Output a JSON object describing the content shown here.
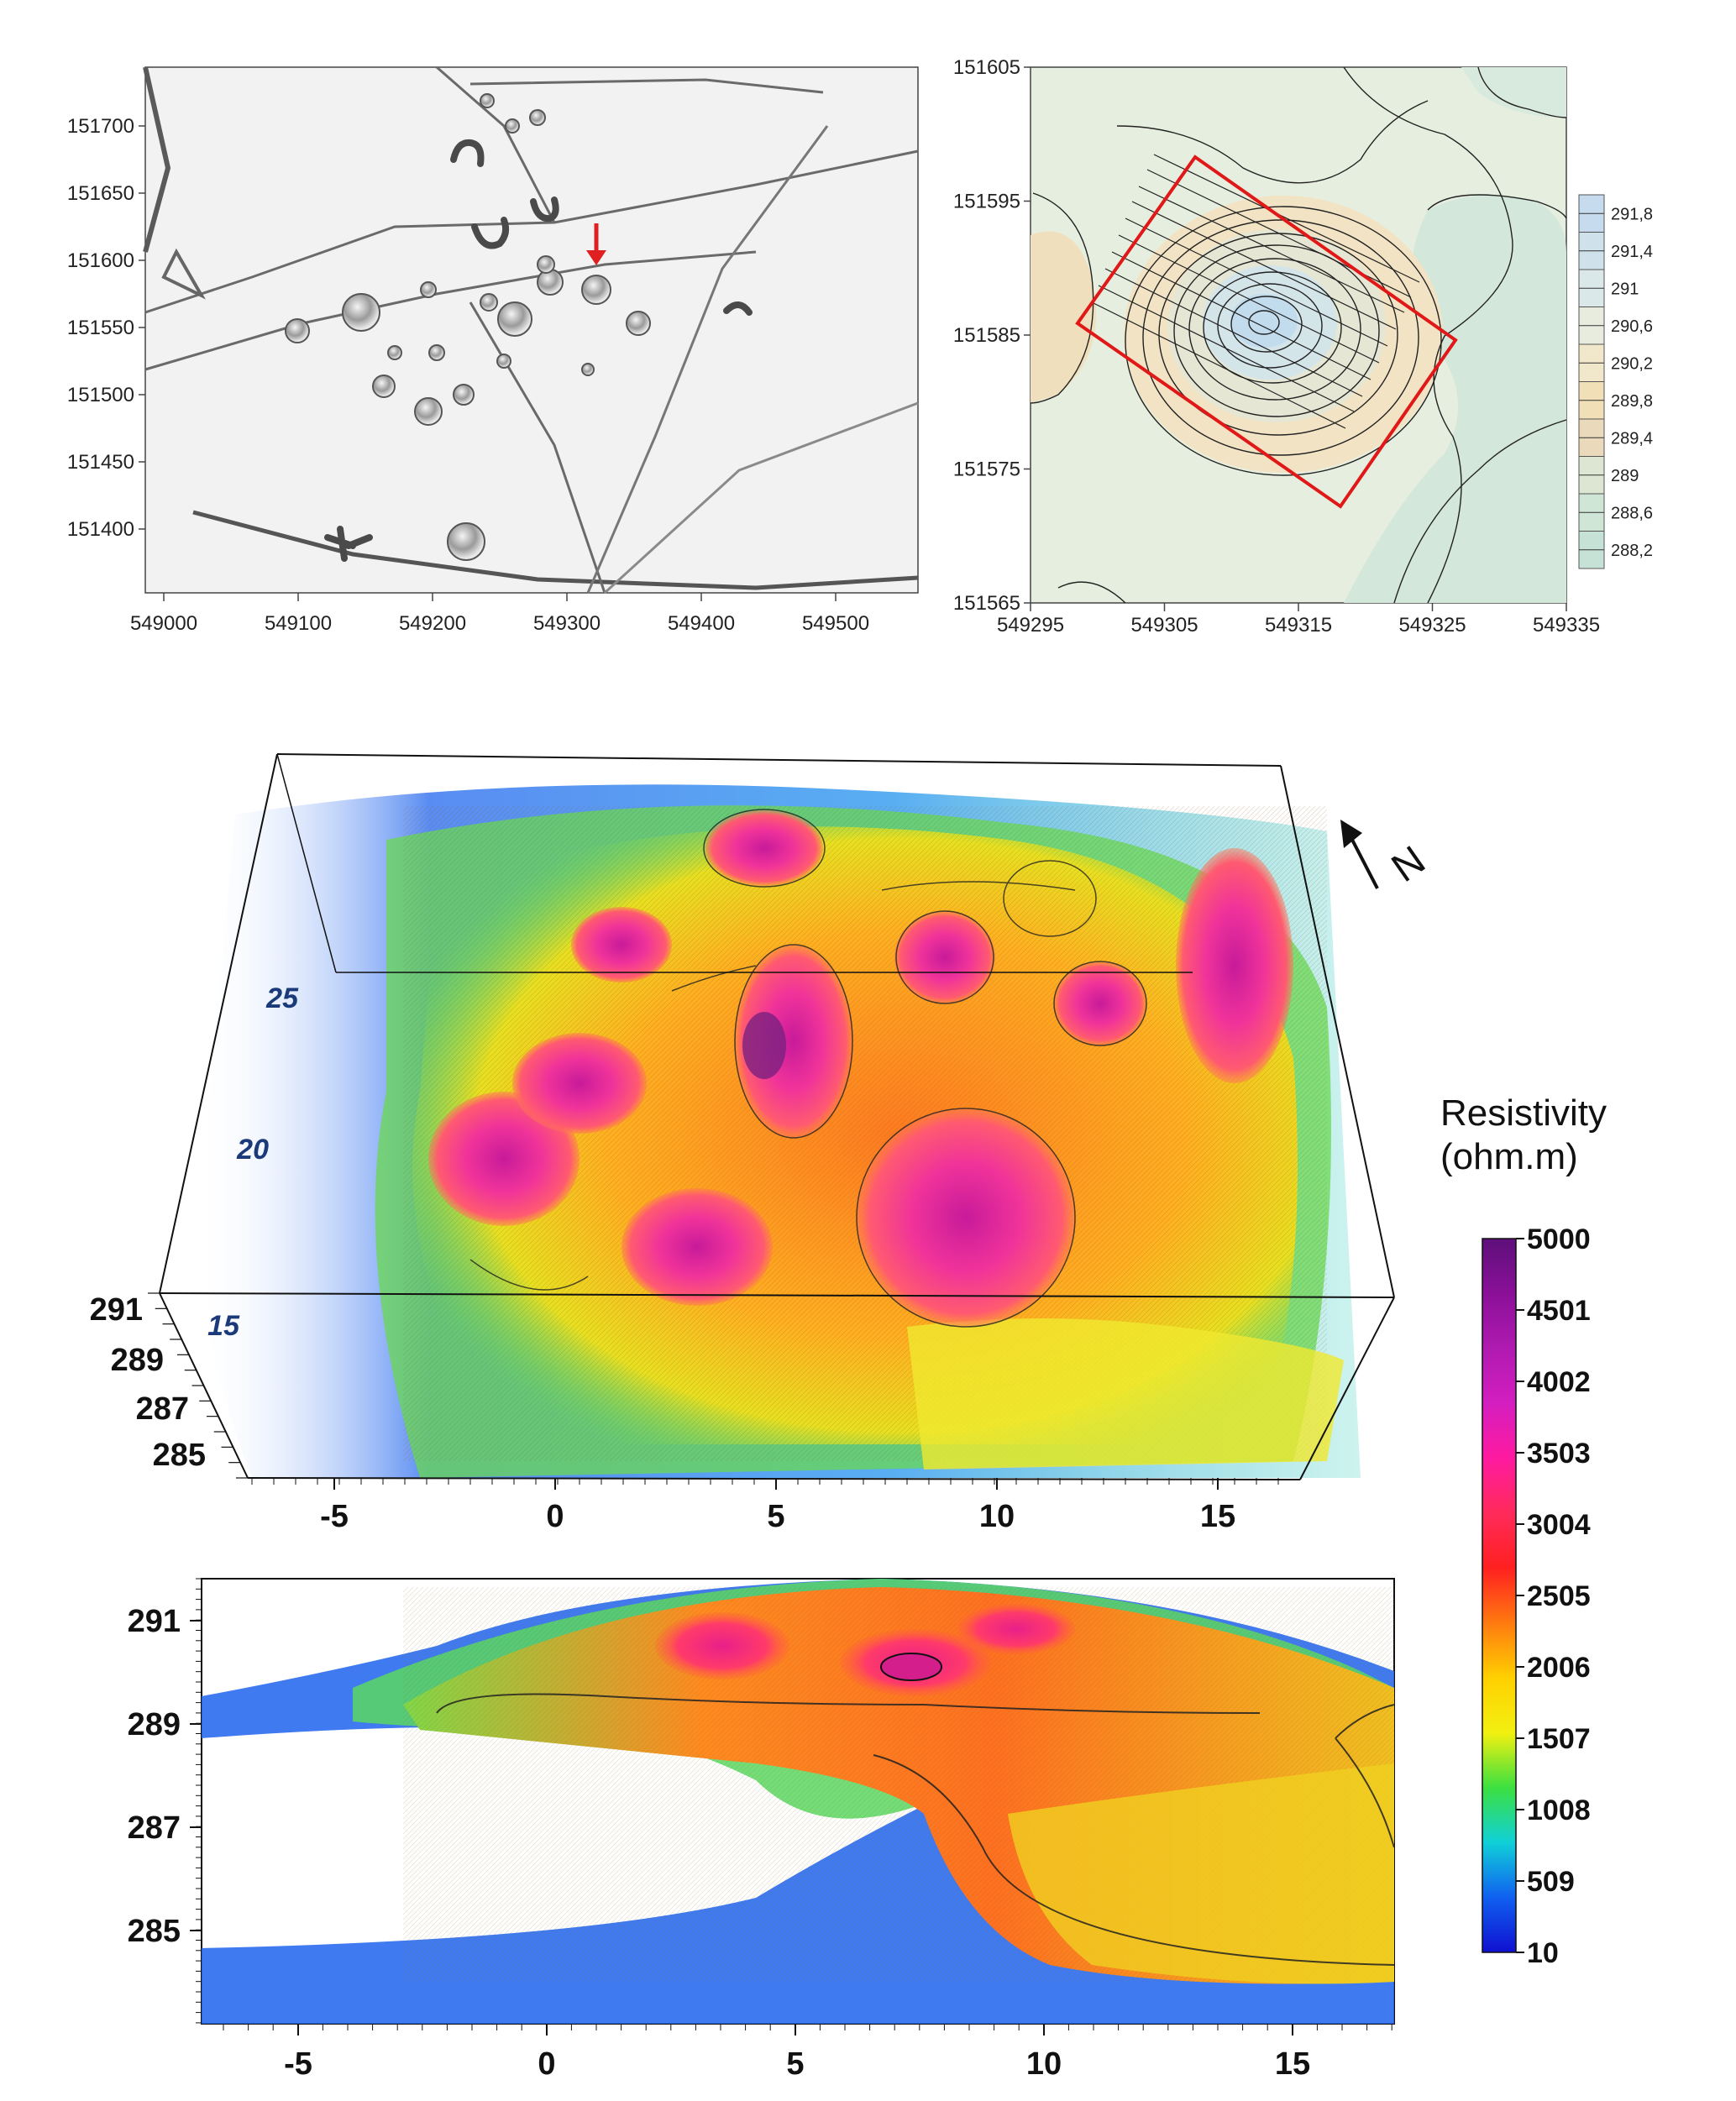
{
  "panels": {
    "lidar": {
      "y_ticks": [
        "151700",
        "151650",
        "151600",
        "151550",
        "151500",
        "151450",
        "151400"
      ],
      "x_ticks": [
        "549000",
        "549100",
        "549200",
        "549300",
        "549400",
        "549500"
      ]
    },
    "contour": {
      "y_ticks": [
        "151605",
        "151595",
        "151585",
        "151575",
        "151565"
      ],
      "x_ticks": [
        "549295",
        "549305",
        "549315",
        "549325",
        "549335"
      ],
      "legend": [
        "291,8",
        "291,4",
        "291",
        "290,6",
        "290,2",
        "289,8",
        "289,4",
        "289",
        "288,6",
        "288,2"
      ],
      "legend_colors": [
        "#c6dcee",
        "#cfe2ec",
        "#dbe8ea",
        "#e7ecde",
        "#f1e8cc",
        "#f1dfb8",
        "#ead9bb",
        "#dde6d2",
        "#cfe5d6",
        "#c6e2d6"
      ]
    },
    "volume3d": {
      "north_label": "N",
      "y_ticks": [
        "25",
        "20",
        "15"
      ],
      "z_ticks": [
        "291",
        "289",
        "287",
        "285"
      ],
      "x_ticks": [
        "-5",
        "0",
        "5",
        "10",
        "15"
      ]
    },
    "section": {
      "y_ticks": [
        "291",
        "289",
        "287",
        "285"
      ],
      "x_ticks": [
        "-5",
        "0",
        "5",
        "10",
        "15"
      ]
    }
  },
  "colorbar": {
    "title_line1": "Resistivity",
    "title_line2": "(ohm.m)",
    "ticks": [
      "5000",
      "4501",
      "4002",
      "3503",
      "3004",
      "2505",
      "2006",
      "1507",
      "1008",
      "509",
      "10"
    ],
    "colors": [
      "#5e0f7a",
      "#8a1098",
      "#b01ab0",
      "#d41ec0",
      "#ff1aa0",
      "#ff2a5a",
      "#ff2020",
      "#ff7a10",
      "#ffd000",
      "#f2f010",
      "#3ce040",
      "#10d0d8",
      "#1060f0",
      "#1010d0"
    ]
  }
}
